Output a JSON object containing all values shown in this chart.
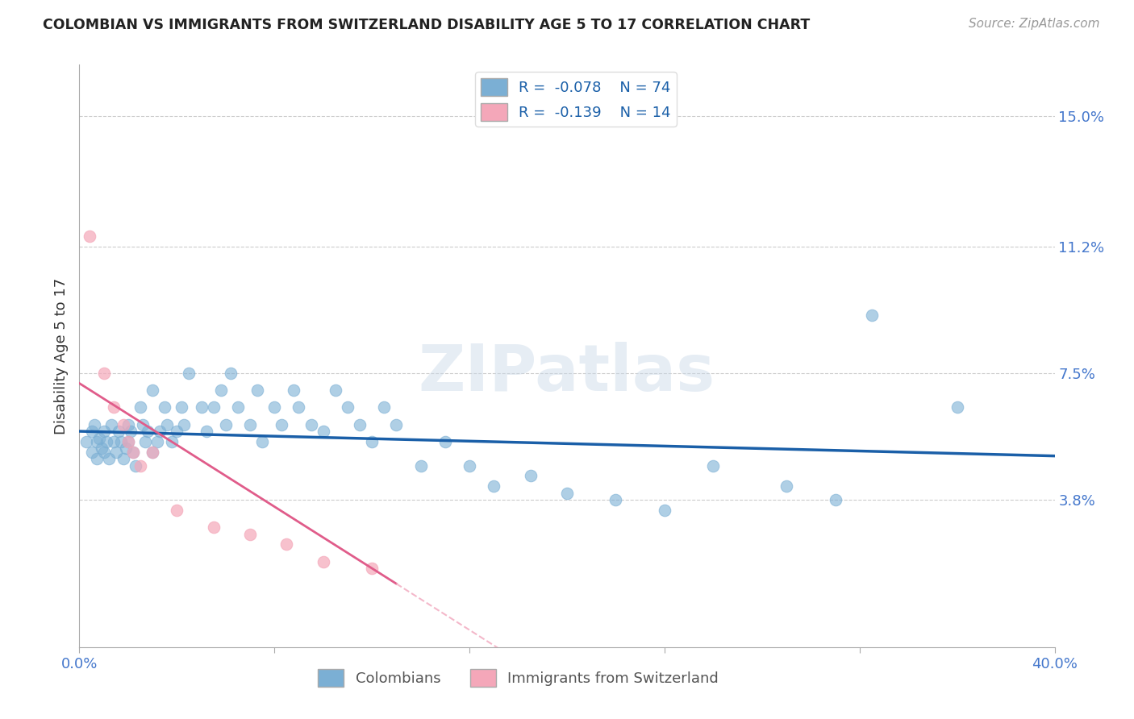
{
  "title": "COLOMBIAN VS IMMIGRANTS FROM SWITZERLAND DISABILITY AGE 5 TO 17 CORRELATION CHART",
  "source": "Source: ZipAtlas.com",
  "ylabel": "Disability Age 5 to 17",
  "xlabel": "",
  "xlim": [
    0.0,
    0.4
  ],
  "ylim": [
    -0.005,
    0.165
  ],
  "xticks": [
    0.0,
    0.08,
    0.16,
    0.24,
    0.32,
    0.4
  ],
  "xticklabels": [
    "0.0%",
    "",
    "",
    "",
    "",
    "40.0%"
  ],
  "ytick_positions": [
    0.038,
    0.075,
    0.112,
    0.15
  ],
  "ytick_labels": [
    "3.8%",
    "7.5%",
    "11.2%",
    "15.0%"
  ],
  "grid_color": "#cccccc",
  "background_color": "#ffffff",
  "colombian_color": "#7bafd4",
  "swiss_color": "#f4a7b9",
  "colombian_line_color": "#1a5fa8",
  "swiss_line_color": "#e05c8a",
  "swiss_line_dashed_color": "#f4b8ca",
  "legend_box_color": "#ffffff",
  "R_colombian": -0.078,
  "N_colombian": 74,
  "R_swiss": -0.139,
  "N_swiss": 14,
  "watermark": "ZIPatlas",
  "colombian_points": [
    [
      0.003,
      0.055
    ],
    [
      0.005,
      0.058
    ],
    [
      0.005,
      0.052
    ],
    [
      0.006,
      0.06
    ],
    [
      0.007,
      0.055
    ],
    [
      0.007,
      0.05
    ],
    [
      0.008,
      0.056
    ],
    [
      0.009,
      0.053
    ],
    [
      0.01,
      0.058
    ],
    [
      0.01,
      0.052
    ],
    [
      0.011,
      0.055
    ],
    [
      0.012,
      0.05
    ],
    [
      0.013,
      0.06
    ],
    [
      0.014,
      0.055
    ],
    [
      0.015,
      0.052
    ],
    [
      0.016,
      0.058
    ],
    [
      0.017,
      0.055
    ],
    [
      0.018,
      0.05
    ],
    [
      0.019,
      0.053
    ],
    [
      0.02,
      0.06
    ],
    [
      0.02,
      0.055
    ],
    [
      0.021,
      0.058
    ],
    [
      0.022,
      0.052
    ],
    [
      0.023,
      0.048
    ],
    [
      0.025,
      0.065
    ],
    [
      0.026,
      0.06
    ],
    [
      0.027,
      0.055
    ],
    [
      0.028,
      0.058
    ],
    [
      0.03,
      0.052
    ],
    [
      0.03,
      0.07
    ],
    [
      0.032,
      0.055
    ],
    [
      0.033,
      0.058
    ],
    [
      0.035,
      0.065
    ],
    [
      0.036,
      0.06
    ],
    [
      0.038,
      0.055
    ],
    [
      0.04,
      0.058
    ],
    [
      0.042,
      0.065
    ],
    [
      0.043,
      0.06
    ],
    [
      0.045,
      0.075
    ],
    [
      0.05,
      0.065
    ],
    [
      0.052,
      0.058
    ],
    [
      0.055,
      0.065
    ],
    [
      0.058,
      0.07
    ],
    [
      0.06,
      0.06
    ],
    [
      0.062,
      0.075
    ],
    [
      0.065,
      0.065
    ],
    [
      0.07,
      0.06
    ],
    [
      0.073,
      0.07
    ],
    [
      0.075,
      0.055
    ],
    [
      0.08,
      0.065
    ],
    [
      0.083,
      0.06
    ],
    [
      0.088,
      0.07
    ],
    [
      0.09,
      0.065
    ],
    [
      0.095,
      0.06
    ],
    [
      0.1,
      0.058
    ],
    [
      0.105,
      0.07
    ],
    [
      0.11,
      0.065
    ],
    [
      0.115,
      0.06
    ],
    [
      0.12,
      0.055
    ],
    [
      0.125,
      0.065
    ],
    [
      0.13,
      0.06
    ],
    [
      0.14,
      0.048
    ],
    [
      0.15,
      0.055
    ],
    [
      0.16,
      0.048
    ],
    [
      0.17,
      0.042
    ],
    [
      0.185,
      0.045
    ],
    [
      0.2,
      0.04
    ],
    [
      0.22,
      0.038
    ],
    [
      0.24,
      0.035
    ],
    [
      0.26,
      0.048
    ],
    [
      0.29,
      0.042
    ],
    [
      0.31,
      0.038
    ],
    [
      0.325,
      0.092
    ],
    [
      0.36,
      0.065
    ]
  ],
  "swiss_points": [
    [
      0.004,
      0.115
    ],
    [
      0.01,
      0.075
    ],
    [
      0.014,
      0.065
    ],
    [
      0.018,
      0.06
    ],
    [
      0.02,
      0.055
    ],
    [
      0.022,
      0.052
    ],
    [
      0.025,
      0.048
    ],
    [
      0.03,
      0.052
    ],
    [
      0.04,
      0.035
    ],
    [
      0.055,
      0.03
    ],
    [
      0.07,
      0.028
    ],
    [
      0.085,
      0.025
    ],
    [
      0.1,
      0.02
    ],
    [
      0.12,
      0.018
    ]
  ],
  "title_color": "#222222",
  "axis_label_color": "#333333",
  "tick_label_color": "#4477cc",
  "legend_text_color": "#1a5fa8",
  "source_color": "#999999"
}
